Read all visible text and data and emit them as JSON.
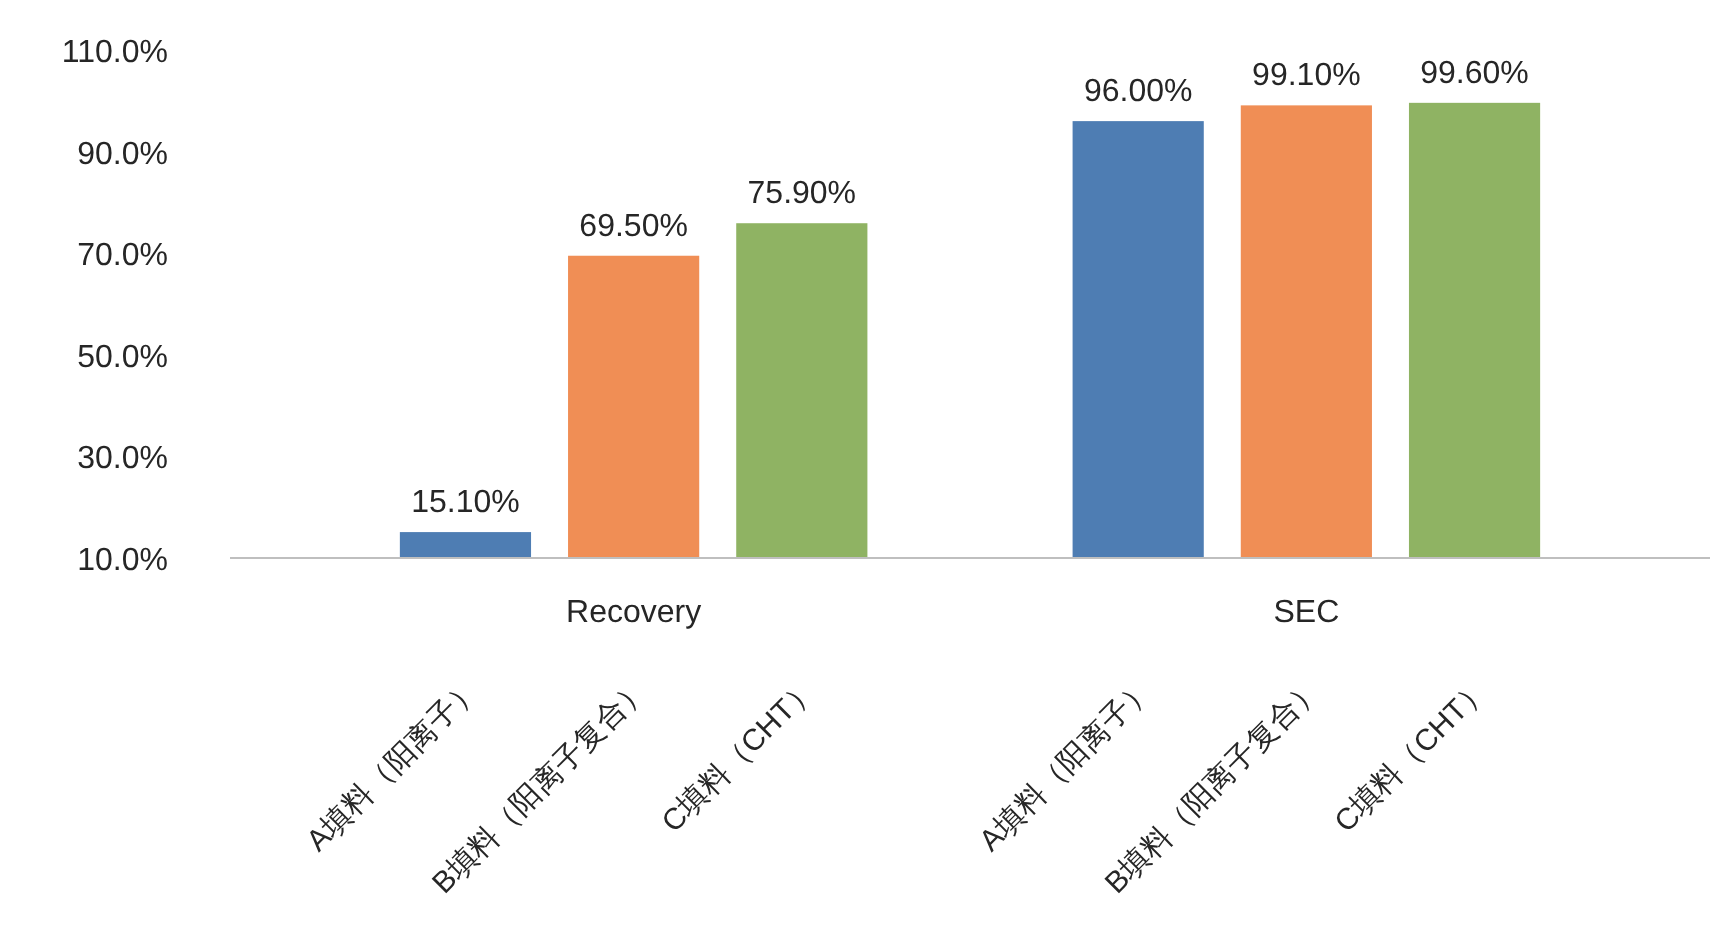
{
  "chart_data": {
    "type": "bar",
    "categories": [
      "A填料（阳离子）",
      "B填料（阳离子复合）",
      "C填料（CHT）",
      null,
      "A填料（阳离子）",
      "B填料（阳离子复合）",
      "C填料（CHT）"
    ],
    "values": [
      15.1,
      69.5,
      75.9,
      null,
      96.0,
      99.1,
      99.6
    ],
    "value_labels": [
      "15.10%",
      "69.50%",
      "75.90%",
      null,
      "96.00%",
      "99.10%",
      "99.60%"
    ],
    "colors": [
      "#4e7db3",
      "#f08e55",
      "#8fb363",
      null,
      "#4e7db3",
      "#f08e55",
      "#8fb363"
    ],
    "annotations": [
      "Recovery",
      "SEC"
    ],
    "ylim": [
      10,
      110
    ],
    "yticks": [
      {
        "value": 10,
        "label": "10.0%"
      },
      {
        "value": 30,
        "label": "30.0%"
      },
      {
        "value": 50,
        "label": "50.0%"
      },
      {
        "value": 70,
        "label": "70.0%"
      },
      {
        "value": 90,
        "label": "90.0%"
      },
      {
        "value": 110,
        "label": "110.0%"
      }
    ]
  }
}
